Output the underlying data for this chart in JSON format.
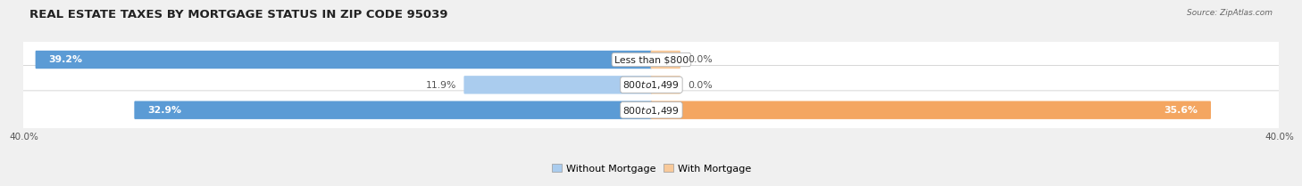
{
  "title": "REAL ESTATE TAXES BY MORTGAGE STATUS IN ZIP CODE 95039",
  "source": "Source: ZipAtlas.com",
  "rows": [
    {
      "label": "Less than $800",
      "without_mortgage": 39.2,
      "with_mortgage": 0.0,
      "wm_pct_label": "39.2%",
      "wtm_pct_label": "0.0%",
      "wm_inside": true,
      "wtm_inside": false
    },
    {
      "label": "$800 to $1,499",
      "without_mortgage": 11.9,
      "with_mortgage": 0.0,
      "wm_pct_label": "11.9%",
      "wtm_pct_label": "0.0%",
      "wm_inside": false,
      "wtm_inside": false
    },
    {
      "label": "$800 to $1,499",
      "without_mortgage": 32.9,
      "with_mortgage": 35.6,
      "wm_pct_label": "32.9%",
      "wtm_pct_label": "35.6%",
      "wm_inside": true,
      "wtm_inside": true
    }
  ],
  "x_max": 40.0,
  "color_without": "#5b9bd5",
  "color_with": "#f4a661",
  "color_without_stub": "#aaccee",
  "color_with_stub": "#f8c99a",
  "bg_row": "#e8e8e8",
  "bg_fig": "#f0f0f0",
  "bar_height": 0.62,
  "row_sep": 1.0,
  "title_fontsize": 9.5,
  "label_fontsize": 7.8,
  "pct_fontsize": 7.8,
  "axis_fontsize": 7.5,
  "legend_fontsize": 8.0
}
